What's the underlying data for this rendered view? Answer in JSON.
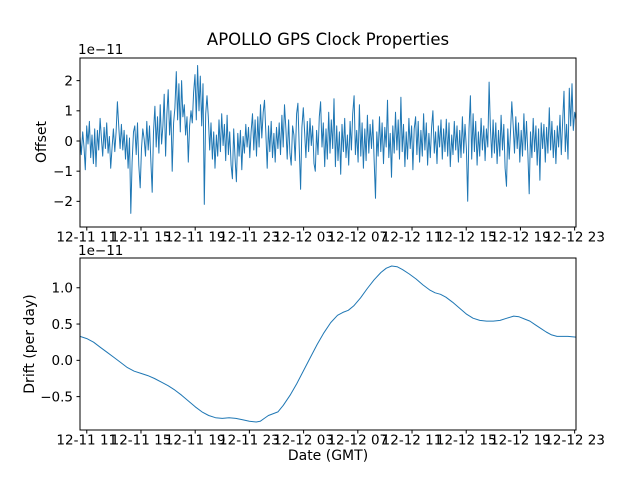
{
  "figure": {
    "title": "APOLLO GPS Clock Properties"
  },
  "chart_data": [
    {
      "type": "line",
      "title": "APOLLO GPS Clock Properties",
      "ylabel": "Offset",
      "offset_text": "1e−11",
      "grid": false,
      "legend": null,
      "xlim": [
        0,
        36.6
      ],
      "ylim": [
        -2.85,
        2.75
      ],
      "yticks": {
        "values": [
          2,
          1,
          0,
          -1,
          -2
        ],
        "labels": [
          "2",
          "1",
          "0",
          "−1",
          "−2"
        ]
      },
      "xticks": {
        "values": [
          0.5,
          4.5,
          8.5,
          12.5,
          16.5,
          20.5,
          24.5,
          28.5,
          32.5,
          36.5
        ],
        "labels": [
          "12-11 11",
          "12-11 15",
          "12-11 19",
          "12-11 23",
          "12-12 03",
          "12-12 07",
          "12-12 11",
          "12-12 15",
          "12-12 19",
          "12-12 23"
        ]
      },
      "series": [
        {
          "name": "offset",
          "color": "#1f77b4",
          "unit_scale": "1e-11",
          "y": [
            0.15,
            -0.45,
            0.3,
            -0.2,
            -0.95,
            0.5,
            -0.1,
            0.65,
            -0.55,
            0.2,
            -0.75,
            0.4,
            -0.85,
            0.35,
            -0.3,
            0.75,
            0.1,
            -0.5,
            0.45,
            -0.25,
            0.6,
            -0.4,
            0.15,
            -0.9,
            -0.2,
            0.4,
            -0.35,
            0.3,
            1.3,
            0.45,
            -0.25,
            0.55,
            -0.3,
            0.35,
            -0.6,
            0.2,
            -0.9,
            0.1,
            -2.4,
            -0.7,
            0.3,
            0.5,
            -0.45,
            0.6,
            -0.8,
            -1.55,
            -0.25,
            0.4,
            0.05,
            -0.5,
            0.65,
            -0.3,
            0.5,
            -0.7,
            -1.7,
            0.3,
            1.15,
            -0.2,
            0.8,
            -0.4,
            1.2,
            -0.1,
            0.5,
            1.55,
            -0.5,
            0.9,
            1.7,
            0.2,
            1.0,
            -1.0,
            0.6,
            1.1,
            2.3,
            0.7,
            1.9,
            0.3,
            2.0,
            0.8,
            1.2,
            0.2,
            0.8,
            -0.7,
            0.5,
            1.0,
            0.6,
            1.6,
            2.2,
            0.7,
            2.5,
            1.0,
            2.15,
            0.5,
            1.9,
            -2.1,
            0.9,
            1.5,
            0.8,
            -0.3,
            0.6,
            -0.6,
            0.3,
            -0.9,
            0.2,
            -0.5,
            0.7,
            -0.35,
            0.9,
            -0.15,
            0.55,
            -0.65,
            0.85,
            -0.45,
            0.3,
            -0.8,
            -1.25,
            0.4,
            -0.6,
            -1.35,
            0.25,
            -0.5,
            0.35,
            -0.95,
            0.15,
            -0.4,
            0.55,
            -0.2,
            0.45,
            -0.55,
            0.3,
            0.9,
            -0.3,
            0.7,
            -0.5,
            0.8,
            -0.2,
            1.2,
            0.1,
            0.95,
            1.35,
            0.3,
            -0.9,
            0.5,
            -0.35,
            0.65,
            -0.55,
            0.25,
            -0.7,
            0.45,
            -0.25,
            0.6,
            -0.45,
            0.85,
            -0.2,
            1.2,
            0.4,
            -0.6,
            0.7,
            -0.4,
            -0.8,
            0.5,
            0.2,
            -0.65,
            0.9,
            1.25,
            -0.3,
            -1.6,
            0.45,
            1.1,
            0.3,
            -0.55,
            0.65,
            -0.35,
            0.75,
            -0.15,
            0.5,
            -0.75,
            -1.0,
            0.35,
            -0.45,
            0.8,
            1.3,
            -0.2,
            0.6,
            -0.85,
            0.4,
            -0.6,
            0.95,
            -0.4,
            0.7,
            -0.25,
            1.4,
            -0.85,
            0.5,
            -0.65,
            0.3,
            -1.1,
            0.55,
            -0.35,
            0.75,
            -0.55,
            0.2,
            -0.8,
            0.65,
            -0.3,
            0.9,
            1.5,
            -0.45,
            0.35,
            -0.7,
            1.2,
            -0.5,
            0.6,
            -0.9,
            0.4,
            -0.65,
            0.85,
            -0.4,
            0.55,
            -0.25,
            0.7,
            -0.6,
            -1.9,
            0.3,
            -0.5,
            0.8,
            -0.35,
            0.6,
            -0.75,
            0.45,
            -0.2,
            1.35,
            -0.55,
            0.25,
            -1.2,
            0.5,
            -0.4,
            0.95,
            -0.3,
            0.7,
            -0.6,
            1.45,
            -0.35,
            0.55,
            -0.85,
            0.3,
            -0.6,
            0.75,
            -0.25,
            0.5,
            -0.95,
            0.4,
            0.8,
            -0.45,
            0.65,
            -0.7,
            0.35,
            -0.5,
            0.9,
            -0.3,
            0.6,
            -0.8,
            0.25,
            -0.55,
            0.45,
            1.0,
            -0.4,
            0.3,
            -0.75,
            0.5,
            -0.2,
            0.7,
            -0.6,
            0.4,
            -0.35,
            0.72,
            -0.5,
            0.6,
            -0.85,
            0.2,
            -0.45,
            0.65,
            -0.3,
            0.5,
            -0.7,
            0.35,
            -0.55,
            0.8,
            -0.4,
            0.55,
            -0.25,
            -2.0,
            0.4,
            1.5,
            -0.6,
            0.9,
            -0.35,
            0.65,
            -0.8,
            0.3,
            -0.5,
            0.75,
            -0.3,
            0.5,
            -0.65,
            0.4,
            -0.2,
            1.95,
            0.45,
            -0.55,
            0.7,
            -0.4,
            0.6,
            -0.75,
            0.35,
            -0.5,
            0.85,
            -0.3,
            0.55,
            -0.9,
            -1.5,
            0.4,
            -0.6,
            0.3,
            1.3,
            0.5,
            -0.4,
            0.8,
            -0.25,
            0.6,
            -0.7,
            0.35,
            -0.5,
            0.9,
            -0.3,
            0.65,
            -0.45,
            -1.75,
            0.3,
            -0.55,
            0.75,
            -0.35,
            0.5,
            -0.8,
            0.4,
            -1.3,
            0.6,
            -0.25,
            0.55,
            -0.7,
            0.45,
            -0.4,
            1.1,
            -0.3,
            0.65,
            -0.55,
            0.35,
            -0.75,
            0.5,
            -0.2,
            0.85,
            -0.45,
            0.6,
            1.65,
            -0.35,
            0.55,
            -0.6,
            1.75,
            0.5,
            1.9,
            0.35,
            0.95,
            0.7
          ]
        }
      ]
    },
    {
      "type": "line",
      "ylabel": "Drift (per day)",
      "xlabel": "Date (GMT)",
      "offset_text": "1e−11",
      "grid": false,
      "legend": null,
      "xlim": [
        0,
        36.6
      ],
      "ylim": [
        -0.96,
        1.41
      ],
      "yticks": {
        "values": [
          1.0,
          0.5,
          0.0,
          -0.5
        ],
        "labels": [
          "1.0",
          "0.5",
          "0.0",
          "−0.5"
        ]
      },
      "xticks": {
        "values": [
          0.5,
          4.5,
          8.5,
          12.5,
          16.5,
          20.5,
          24.5,
          28.5,
          32.5,
          36.5
        ],
        "labels": [
          "12-11 11",
          "12-11 15",
          "12-11 19",
          "12-11 23",
          "12-12 03",
          "12-12 07",
          "12-12 11",
          "12-12 15",
          "12-12 19",
          "12-12 23"
        ]
      },
      "series": [
        {
          "name": "drift",
          "color": "#1f77b4",
          "unit_scale": "1e-11",
          "points": [
            [
              0,
              0.33
            ],
            [
              0.5,
              0.3
            ],
            [
              1,
              0.25
            ],
            [
              1.5,
              0.18
            ],
            [
              2,
              0.11
            ],
            [
              2.5,
              0.04
            ],
            [
              3,
              -0.03
            ],
            [
              3.5,
              -0.1
            ],
            [
              4,
              -0.15
            ],
            [
              4.5,
              -0.18
            ],
            [
              5,
              -0.21
            ],
            [
              5.5,
              -0.25
            ],
            [
              6,
              -0.3
            ],
            [
              6.5,
              -0.35
            ],
            [
              7,
              -0.41
            ],
            [
              7.5,
              -0.48
            ],
            [
              8,
              -0.56
            ],
            [
              8.5,
              -0.64
            ],
            [
              9,
              -0.71
            ],
            [
              9.5,
              -0.76
            ],
            [
              10,
              -0.79
            ],
            [
              10.5,
              -0.8
            ],
            [
              11,
              -0.79
            ],
            [
              11.5,
              -0.8
            ],
            [
              12,
              -0.82
            ],
            [
              12.5,
              -0.84
            ],
            [
              13,
              -0.85
            ],
            [
              13.3,
              -0.84
            ],
            [
              13.6,
              -0.8
            ],
            [
              13.9,
              -0.76
            ],
            [
              14.2,
              -0.74
            ],
            [
              14.6,
              -0.71
            ],
            [
              15,
              -0.62
            ],
            [
              15.5,
              -0.48
            ],
            [
              16,
              -0.32
            ],
            [
              16.5,
              -0.14
            ],
            [
              17,
              0.04
            ],
            [
              17.5,
              0.22
            ],
            [
              18,
              0.38
            ],
            [
              18.5,
              0.52
            ],
            [
              19,
              0.62
            ],
            [
              19.4,
              0.66
            ],
            [
              19.8,
              0.69
            ],
            [
              20.2,
              0.75
            ],
            [
              20.7,
              0.86
            ],
            [
              21.2,
              0.99
            ],
            [
              21.7,
              1.11
            ],
            [
              22.2,
              1.21
            ],
            [
              22.6,
              1.27
            ],
            [
              23,
              1.3
            ],
            [
              23.4,
              1.29
            ],
            [
              23.8,
              1.25
            ],
            [
              24.3,
              1.19
            ],
            [
              24.8,
              1.12
            ],
            [
              25.3,
              1.04
            ],
            [
              25.8,
              0.97
            ],
            [
              26.2,
              0.93
            ],
            [
              26.6,
              0.91
            ],
            [
              27,
              0.87
            ],
            [
              27.5,
              0.8
            ],
            [
              28,
              0.72
            ],
            [
              28.5,
              0.64
            ],
            [
              29,
              0.58
            ],
            [
              29.5,
              0.55
            ],
            [
              30,
              0.54
            ],
            [
              30.5,
              0.54
            ],
            [
              31,
              0.55
            ],
            [
              31.5,
              0.58
            ],
            [
              32,
              0.61
            ],
            [
              32.4,
              0.6
            ],
            [
              32.8,
              0.57
            ],
            [
              33.2,
              0.54
            ],
            [
              33.6,
              0.49
            ],
            [
              34,
              0.44
            ],
            [
              34.4,
              0.39
            ],
            [
              34.8,
              0.35
            ],
            [
              35.2,
              0.33
            ],
            [
              35.6,
              0.33
            ],
            [
              36,
              0.33
            ],
            [
              36.6,
              0.32
            ]
          ]
        }
      ]
    }
  ]
}
